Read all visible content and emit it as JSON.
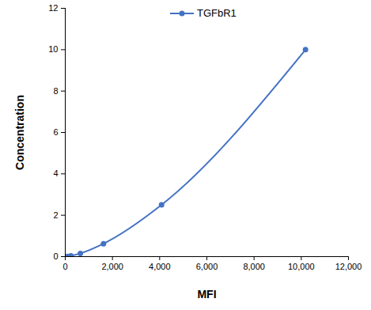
{
  "chart_data": {
    "type": "line",
    "x_label": "MFI",
    "y_label": "Concentration",
    "x": [
      40,
      90,
      240,
      640,
      1620,
      4080,
      10180
    ],
    "series": [
      {
        "name": "TGFbR1",
        "color": "#4472c4",
        "marker": "circle",
        "line_style": "smooth",
        "values": [
          0,
          0.0098,
          0.039,
          0.156,
          0.625,
          2.5,
          10
        ]
      }
    ],
    "xlim": [
      0,
      12000
    ],
    "xticks": [
      0,
      2000,
      4000,
      6000,
      8000,
      10000,
      12000
    ],
    "ylim": [
      0,
      12
    ],
    "yticks": [
      0,
      2,
      4,
      6,
      8,
      10,
      12
    ],
    "grid": false,
    "legend": "top"
  }
}
